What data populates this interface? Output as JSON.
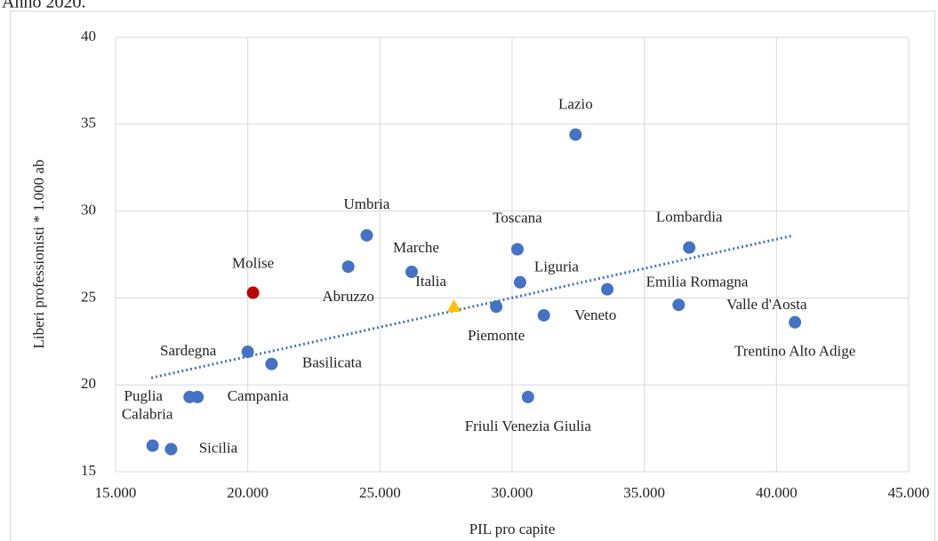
{
  "chart_data": {
    "type": "scatter",
    "title": "Anno 2020.",
    "x_label": "PIL pro capite",
    "y_label": "Liberi professionisti * 1.000 ab",
    "xlim": [
      15000,
      45000
    ],
    "ylim": [
      15,
      40
    ],
    "xticks": [
      {
        "value": 15000,
        "label": "15.000"
      },
      {
        "value": 20000,
        "label": "20.000"
      },
      {
        "value": 25000,
        "label": "25.000"
      },
      {
        "value": 30000,
        "label": "30.000"
      },
      {
        "value": 35000,
        "label": "35.000"
      },
      {
        "value": 40000,
        "label": "40.000"
      },
      {
        "value": 45000,
        "label": "45.000"
      }
    ],
    "yticks": [
      15,
      20,
      25,
      30,
      35,
      40
    ],
    "grid": true,
    "points": [
      {
        "label": "Lazio",
        "x": 32400,
        "y": 34.4,
        "color": "#4472c4",
        "marker": "circle"
      },
      {
        "label": "Umbria",
        "x": 24500,
        "y": 28.6,
        "color": "#4472c4",
        "marker": "circle"
      },
      {
        "label": "Toscana",
        "x": 30200,
        "y": 27.8,
        "color": "#4472c4",
        "marker": "circle"
      },
      {
        "label": "Lombardia",
        "x": 36700,
        "y": 27.9,
        "color": "#4472c4",
        "marker": "circle"
      },
      {
        "label": "Abruzzo",
        "x": 23800,
        "y": 26.8,
        "color": "#4472c4",
        "marker": "circle"
      },
      {
        "label": "Marche",
        "x": 26200,
        "y": 26.5,
        "color": "#4472c4",
        "marker": "circle"
      },
      {
        "label": "Liguria",
        "x": 30300,
        "y": 25.9,
        "color": "#4472c4",
        "marker": "circle"
      },
      {
        "label": "Molise",
        "x": 20200,
        "y": 25.3,
        "color": "#c00000",
        "marker": "circle"
      },
      {
        "label": "Emilia Romagna",
        "x": 33600,
        "y": 25.5,
        "color": "#4472c4",
        "marker": "circle"
      },
      {
        "label": "Italia",
        "x": 27800,
        "y": 24.5,
        "color": "#ffc000",
        "marker": "triangle"
      },
      {
        "label": "Piemonte",
        "x": 29400,
        "y": 24.5,
        "color": "#4472c4",
        "marker": "circle"
      },
      {
        "label": "Veneto",
        "x": 31200,
        "y": 24.0,
        "color": "#4472c4",
        "marker": "circle"
      },
      {
        "label": "Valle d'Aosta",
        "x": 36300,
        "y": 24.6,
        "color": "#4472c4",
        "marker": "circle"
      },
      {
        "label": "Trentino Alto Adige",
        "x": 40700,
        "y": 23.6,
        "color": "#4472c4",
        "marker": "circle"
      },
      {
        "label": "Sardegna",
        "x": 20000,
        "y": 21.9,
        "color": "#4472c4",
        "marker": "circle"
      },
      {
        "label": "Basilicata",
        "x": 20900,
        "y": 21.2,
        "color": "#4472c4",
        "marker": "circle"
      },
      {
        "label": "Puglia",
        "x": 17800,
        "y": 19.3,
        "color": "#4472c4",
        "marker": "circle"
      },
      {
        "label": "Campania",
        "x": 18100,
        "y": 19.3,
        "color": "#4472c4",
        "marker": "circle"
      },
      {
        "label": "Friuli Venezia Giulia",
        "x": 30600,
        "y": 19.3,
        "color": "#4472c4",
        "marker": "circle"
      },
      {
        "label": "Calabria",
        "x": 16400,
        "y": 16.5,
        "color": "#4472c4",
        "marker": "circle"
      },
      {
        "label": "Sicilia",
        "x": 17100,
        "y": 16.3,
        "color": "#4472c4",
        "marker": "circle"
      }
    ],
    "trendline": {
      "x": [
        16350,
        40650
      ],
      "y": [
        20.4,
        28.6
      ],
      "color": "#4472c4",
      "style": "dotted"
    }
  }
}
